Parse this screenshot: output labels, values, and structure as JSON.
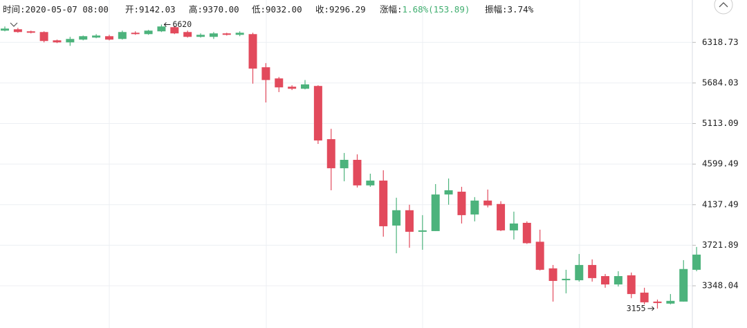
{
  "chart_data": {
    "type": "candlestick",
    "info": [
      {
        "label": "时间:",
        "value": "2020-05-07 08:00"
      },
      {
        "label": "开:",
        "value": "9142.03"
      },
      {
        "label": "高:",
        "value": "9370.00"
      },
      {
        "label": "低:",
        "value": "9032.00"
      },
      {
        "label": "收:",
        "value": "9296.29"
      },
      {
        "label": "涨幅:",
        "value": "1.68%(153.89)",
        "color": "#3fae6f"
      },
      {
        "label": "振幅:",
        "value": "3.74%"
      }
    ],
    "open": [
      6516,
      6539,
      6504,
      6492,
      6353,
      6319,
      6365,
      6399,
      6422,
      6376,
      6480,
      6457,
      6504,
      6575,
      6492,
      6411,
      6411,
      6469,
      6445,
      6457,
      5922,
      5752,
      5629,
      5599,
      5640,
      4909,
      4550,
      4651,
      4351,
      4406,
      3918,
      4078,
      3855,
      3862,
      4249,
      4280,
      4033,
      4182,
      4145,
      3869,
      3946,
      3756,
      3504,
      3397,
      3397,
      3535,
      3434,
      3360,
      3441,
      3289,
      3213,
      3196,
      3213,
      3491
    ],
    "high": [
      6587,
      6563,
      6516,
      6504,
      6365,
      6411,
      6433,
      6457,
      6445,
      6516,
      6504,
      6528,
      6620,
      6598,
      6516,
      6469,
      6492,
      6480,
      6504,
      6480,
      5986,
      5773,
      5650,
      5728,
      5650,
      5043,
      4735,
      4718,
      4486,
      4526,
      4213,
      4137,
      4026,
      4366,
      4430,
      4335,
      4220,
      4304,
      4175,
      4063,
      3961,
      3876,
      3535,
      3491,
      3638,
      3587,
      3453,
      3478,
      3466,
      3331,
      3230,
      3277,
      3580,
      3705
    ],
    "low": [
      6504,
      6480,
      6469,
      6319,
      6307,
      6262,
      6353,
      6388,
      6353,
      6365,
      6445,
      6445,
      6492,
      6457,
      6399,
      6399,
      6376,
      6433,
      6422,
      5674,
      5402,
      5550,
      5580,
      5590,
      4848,
      4296,
      4398,
      4327,
      4335,
      3806,
      3645,
      3698,
      3678,
      3862,
      4137,
      3939,
      3961,
      4108,
      3862,
      3778,
      3735,
      3485,
      3213,
      3283,
      3385,
      3385,
      3331,
      3342,
      3242,
      3190,
      3155,
      3190,
      3213,
      3478
    ],
    "close": [
      6551,
      6492,
      6480,
      6342,
      6319,
      6376,
      6422,
      6433,
      6365,
      6492,
      6457,
      6516,
      6587,
      6469,
      6411,
      6445,
      6469,
      6445,
      6480,
      5901,
      5728,
      5619,
      5599,
      5663,
      4892,
      4550,
      4651,
      4351,
      4406,
      3911,
      4078,
      3855,
      3869,
      4249,
      4296,
      4026,
      4182,
      4130,
      3869,
      3939,
      3742,
      3491,
      3391,
      3410,
      3535,
      3416,
      3360,
      3434,
      3277,
      3207,
      3201,
      3219,
      3498,
      3632
    ],
    "up_color": "#4cb37c",
    "down_color": "#e24a5c",
    "log_scale": true,
    "ylim": [
      2999,
      7058
    ],
    "yticks": [
      6318.73,
      5684.03,
      5113.09,
      4599.49,
      4137.49,
      3721.89,
      3348.04
    ],
    "grid": true
  }
}
